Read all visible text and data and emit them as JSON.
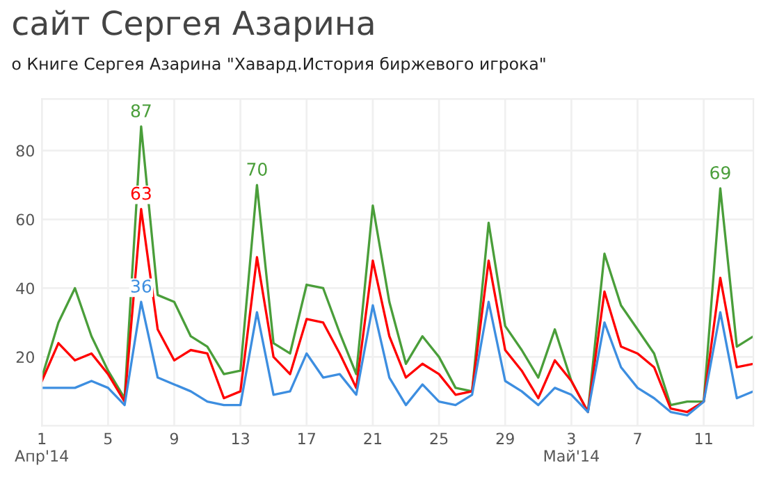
{
  "chart_data": {
    "type": "line",
    "title": "сайт Сергея Азарина",
    "subtitle": "о Книге Сергея Азарина \"Хавард.История биржевого игрока\"",
    "x": [
      "2014-04-01",
      "2014-04-02",
      "2014-04-03",
      "2014-04-04",
      "2014-04-05",
      "2014-04-06",
      "2014-04-07",
      "2014-04-08",
      "2014-04-09",
      "2014-04-10",
      "2014-04-11",
      "2014-04-12",
      "2014-04-13",
      "2014-04-14",
      "2014-04-15",
      "2014-04-16",
      "2014-04-17",
      "2014-04-18",
      "2014-04-19",
      "2014-04-20",
      "2014-04-21",
      "2014-04-22",
      "2014-04-23",
      "2014-04-24",
      "2014-04-25",
      "2014-04-26",
      "2014-04-27",
      "2014-04-28",
      "2014-04-29",
      "2014-04-30",
      "2014-05-01",
      "2014-05-02",
      "2014-05-03",
      "2014-05-04",
      "2014-05-05",
      "2014-05-06",
      "2014-05-07",
      "2014-05-08",
      "2014-05-09",
      "2014-05-10",
      "2014-05-11",
      "2014-05-12",
      "2014-05-13",
      "2014-05-14"
    ],
    "series": [
      {
        "color": "#4a9e3a",
        "values": [
          14,
          30,
          40,
          26,
          16,
          8,
          87,
          38,
          36,
          26,
          23,
          15,
          16,
          70,
          24,
          21,
          41,
          40,
          27,
          15,
          64,
          36,
          18,
          26,
          20,
          11,
          10,
          59,
          29,
          22,
          14,
          28,
          13,
          4,
          50,
          35,
          28,
          21,
          6,
          7,
          7,
          69,
          23,
          26
        ],
        "value_labels": [
          null,
          null,
          null,
          null,
          null,
          null,
          "87",
          null,
          null,
          null,
          null,
          null,
          null,
          "70",
          null,
          null,
          null,
          null,
          null,
          null,
          null,
          null,
          null,
          null,
          null,
          null,
          null,
          null,
          null,
          null,
          null,
          null,
          null,
          null,
          null,
          null,
          null,
          null,
          null,
          null,
          null,
          "69",
          null,
          null
        ]
      },
      {
        "color": "#ff0000",
        "values": [
          13,
          24,
          19,
          21,
          15,
          7,
          63,
          28,
          19,
          22,
          21,
          8,
          10,
          49,
          20,
          15,
          31,
          30,
          21,
          11,
          48,
          26,
          14,
          18,
          15,
          9,
          10,
          48,
          22,
          16,
          8,
          19,
          13,
          4,
          39,
          23,
          21,
          17,
          5,
          4,
          7,
          43,
          17,
          18
        ],
        "value_labels": [
          null,
          null,
          null,
          null,
          null,
          null,
          "63",
          null,
          null,
          null,
          null,
          null,
          null,
          null,
          null,
          null,
          null,
          null,
          null,
          null,
          null,
          null,
          null,
          null,
          null,
          null,
          null,
          null,
          null,
          null,
          null,
          null,
          null,
          null,
          null,
          null,
          null,
          null,
          null,
          null,
          null,
          null,
          null,
          null
        ]
      },
      {
        "color": "#3d8ee0",
        "values": [
          11,
          11,
          11,
          13,
          11,
          6,
          36,
          14,
          12,
          10,
          7,
          6,
          6,
          33,
          9,
          10,
          21,
          14,
          15,
          9,
          35,
          14,
          6,
          12,
          7,
          6,
          9,
          36,
          13,
          10,
          6,
          11,
          9,
          4,
          30,
          17,
          11,
          8,
          4,
          3,
          7,
          33,
          8,
          10
        ],
        "value_labels": [
          null,
          null,
          null,
          null,
          null,
          null,
          "36",
          null,
          null,
          null,
          null,
          null,
          null,
          null,
          null,
          null,
          null,
          null,
          null,
          null,
          null,
          null,
          null,
          null,
          null,
          null,
          null,
          null,
          null,
          null,
          null,
          null,
          null,
          null,
          null,
          null,
          null,
          null,
          null,
          null,
          null,
          null,
          null,
          null
        ]
      }
    ],
    "xlim": [
      "2014-04-01",
      "2014-05-14"
    ],
    "xticks": [
      {
        "value": "2014-04-01",
        "label": "1\nАпр'14"
      },
      {
        "value": "2014-04-05",
        "label": "5"
      },
      {
        "value": "2014-04-09",
        "label": "9"
      },
      {
        "value": "2014-04-13",
        "label": "13"
      },
      {
        "value": "2014-04-17",
        "label": "17"
      },
      {
        "value": "2014-04-21",
        "label": "21"
      },
      {
        "value": "2014-04-25",
        "label": "25"
      },
      {
        "value": "2014-04-29",
        "label": "29"
      },
      {
        "value": "2014-05-03",
        "label": "3\nМай'14"
      },
      {
        "value": "2014-05-07",
        "label": "7"
      },
      {
        "value": "2014-05-11",
        "label": "11"
      }
    ],
    "ylim": [
      0,
      95
    ],
    "yticks": [
      20,
      40,
      60,
      80
    ],
    "grid": true,
    "line_style": "solid",
    "marker": "none"
  }
}
